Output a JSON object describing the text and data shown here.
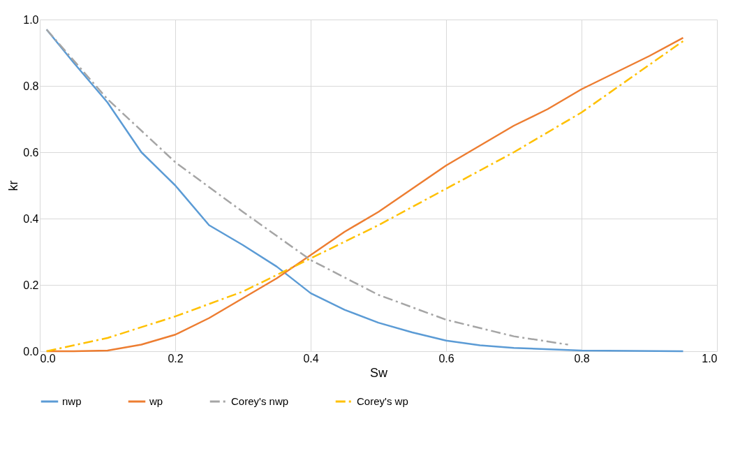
{
  "chart_data": {
    "type": "line",
    "xlabel": "Sw",
    "ylabel": "kr",
    "xlim": [
      0,
      1
    ],
    "ylim": [
      0,
      1
    ],
    "xticks": [
      {
        "value": 0,
        "label": "0.0"
      },
      {
        "value": 0.2,
        "label": "0.2"
      },
      {
        "value": 0.4,
        "label": "0.4"
      },
      {
        "value": 0.6,
        "label": "0.6"
      },
      {
        "value": 0.8,
        "label": "0.8"
      },
      {
        "value": 1,
        "label": "1.0"
      }
    ],
    "yticks": [
      {
        "value": 0,
        "label": "0.0"
      },
      {
        "value": 0.2,
        "label": "0.2"
      },
      {
        "value": 0.4,
        "label": "0.4"
      },
      {
        "value": 0.6,
        "label": "0.6"
      },
      {
        "value": 0.8,
        "label": "0.8"
      },
      {
        "value": 1,
        "label": "1.0"
      }
    ],
    "grid": true,
    "legend": "bottom",
    "marker": "none",
    "series": [
      {
        "name": "nwp",
        "color": "#5b9bd5",
        "line_style": "solid",
        "x": [
          0.01,
          0.05,
          0.1,
          0.15,
          0.2,
          0.25,
          0.3,
          0.35,
          0.4,
          0.45,
          0.5,
          0.55,
          0.6,
          0.65,
          0.7,
          0.8,
          0.95
        ],
        "values": [
          0.97,
          0.87,
          0.75,
          0.6,
          0.5,
          0.38,
          0.32,
          0.255,
          0.175,
          0.125,
          0.086,
          0.057,
          0.032,
          0.018,
          0.01,
          0.002,
          0
        ]
      },
      {
        "name": "wp",
        "color": "#ed7d31",
        "line_style": "solid",
        "x": [
          0.01,
          0.05,
          0.1,
          0.15,
          0.2,
          0.25,
          0.3,
          0.35,
          0.4,
          0.45,
          0.5,
          0.55,
          0.6,
          0.65,
          0.7,
          0.75,
          0.8,
          0.85,
          0.9,
          0.95
        ],
        "values": [
          0,
          0,
          0.002,
          0.02,
          0.05,
          0.1,
          0.16,
          0.22,
          0.29,
          0.36,
          0.42,
          0.49,
          0.56,
          0.62,
          0.68,
          0.73,
          0.79,
          0.84,
          0.89,
          0.945
        ]
      },
      {
        "name": "Corey's nwp",
        "color": "#a5a5a5",
        "line_style": "dashed",
        "x": [
          0.01,
          0.1,
          0.2,
          0.3,
          0.4,
          0.5,
          0.6,
          0.7,
          0.78
        ],
        "values": [
          0.97,
          0.76,
          0.57,
          0.42,
          0.275,
          0.17,
          0.095,
          0.045,
          0.02
        ]
      },
      {
        "name": "Corey's wp",
        "color": "#ffc000",
        "line_style": "dashed",
        "x": [
          0.01,
          0.1,
          0.2,
          0.3,
          0.4,
          0.5,
          0.6,
          0.7,
          0.8,
          0.95
        ],
        "values": [
          0,
          0.04,
          0.105,
          0.18,
          0.28,
          0.38,
          0.49,
          0.6,
          0.72,
          0.935
        ]
      }
    ]
  }
}
